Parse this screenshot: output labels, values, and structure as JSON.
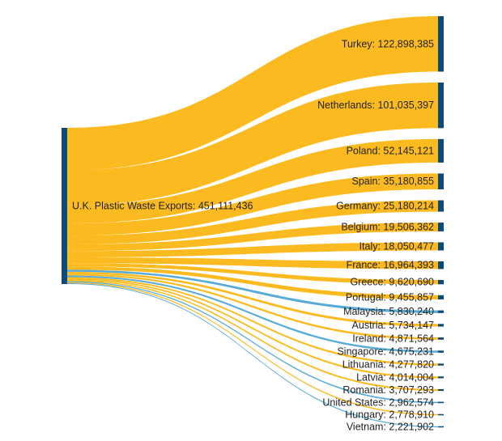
{
  "chart_data": {
    "type": "sankey",
    "source": {
      "label": "U.K. Plastic Waste Exports: 451,111,436",
      "name": "U.K. Plastic Waste Exports",
      "value": 451111436
    },
    "targets": [
      {
        "name": "Turkey",
        "label": "Turkey: 122,898,385",
        "value": 122898385,
        "link_color": "#fbb613"
      },
      {
        "name": "Netherlands",
        "label": "Netherlands: 101,035,397",
        "value": 101035397,
        "link_color": "#fbb613"
      },
      {
        "name": "Poland",
        "label": "Poland: 52,145,121",
        "value": 52145121,
        "link_color": "#fbb613"
      },
      {
        "name": "Spain",
        "label": "Spain: 35,180,855",
        "value": 35180855,
        "link_color": "#fbb613"
      },
      {
        "name": "Germany",
        "label": "Germany: 25,180,214",
        "value": 25180214,
        "link_color": "#fbb613"
      },
      {
        "name": "Belgium",
        "label": "Belgium: 19,506,362",
        "value": 19506362,
        "link_color": "#fbb613"
      },
      {
        "name": "Italy",
        "label": "Italy: 18,050,477",
        "value": 18050477,
        "link_color": "#fbb613"
      },
      {
        "name": "France",
        "label": "France: 16,964,393",
        "value": 16964393,
        "link_color": "#fbb613"
      },
      {
        "name": "Greece",
        "label": "Greece: 9,620,690",
        "value": 9620690,
        "link_color": "#fbb613"
      },
      {
        "name": "Portugal",
        "label": "Portugal: 9,455,857",
        "value": 9455857,
        "link_color": "#fbb613"
      },
      {
        "name": "Malaysia",
        "label": "Malaysia: 5,830,240",
        "value": 5830240,
        "link_color": "#4ea6d4"
      },
      {
        "name": "Austria",
        "label": "Austria: 5,734,147",
        "value": 5734147,
        "link_color": "#fbb613"
      },
      {
        "name": "Ireland",
        "label": "Ireland: 4,871,564",
        "value": 4871564,
        "link_color": "#fbb613"
      },
      {
        "name": "Singapore",
        "label": "Singapore: 4,675,231",
        "value": 4675231,
        "link_color": "#4ea6d4"
      },
      {
        "name": "Lithuania",
        "label": "Lithuania: 4,277,820",
        "value": 4277820,
        "link_color": "#fbb613"
      },
      {
        "name": "Latvia",
        "label": "Latvia: 4,014,004",
        "value": 4014004,
        "link_color": "#fbb613"
      },
      {
        "name": "Romania",
        "label": "Romania: 3,707,293",
        "value": 3707293,
        "link_color": "#fbb613"
      },
      {
        "name": "United States",
        "label": "United States: 2,962,574",
        "value": 2962574,
        "link_color": "#4ea6d4"
      },
      {
        "name": "Hungary",
        "label": "Hungary: 2,778,910",
        "value": 2778910,
        "link_color": "#fbb613"
      },
      {
        "name": "Vietnam",
        "label": "Vietnam: 2,221,902",
        "value": 2221902,
        "link_color": "#4ea6d4"
      }
    ],
    "node_color": "#0d4a7a"
  }
}
